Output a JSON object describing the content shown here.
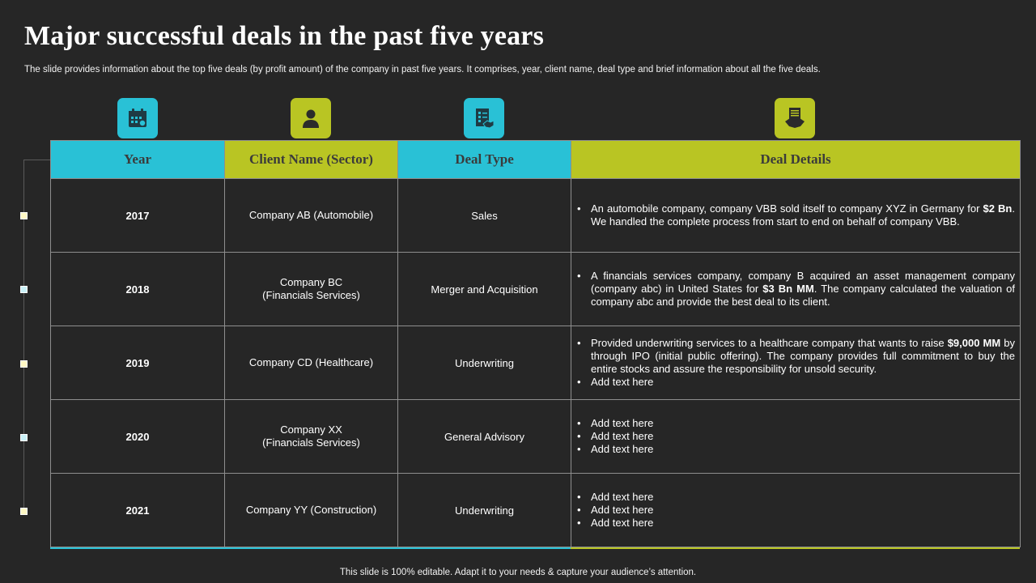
{
  "title": "Major successful deals in the past five years",
  "subtitle": "The slide provides information about the top five deals (by profit amount) of the company in past five years. It comprises, year, client name, deal type and brief information about all the five deals.",
  "colors": {
    "cyan": "#29c1d6",
    "lime": "#b9c523",
    "background": "#262626"
  },
  "icons": [
    "calendar-icon",
    "person-icon",
    "checklist-handshake-icon",
    "document-handshake-icon"
  ],
  "headers": {
    "year": "Year",
    "client": "Client Name (Sector)",
    "deal_type": "Deal Type",
    "details": "Deal Details"
  },
  "rows": [
    {
      "year": "2017",
      "client_lines": [
        "Company AB (Automobile)"
      ],
      "deal_type": "Sales",
      "details": [
        [
          {
            "t": "An automobile company, company VBB sold itself to company XYZ  in Germany for "
          },
          {
            "t": "$2 Bn",
            "b": true
          },
          {
            "t": ". We handled the complete process from start to end on behalf of company VBB."
          }
        ]
      ]
    },
    {
      "year": "2018",
      "client_lines": [
        "Company BC",
        "(Financials Services)"
      ],
      "deal_type": "Merger and Acquisition",
      "details": [
        [
          {
            "t": "A financials services company, company B acquired an asset management company (company abc) in United States for "
          },
          {
            "t": "$3 Bn MM",
            "b": true
          },
          {
            "t": ". The company calculated the valuation of company abc and provide  the best deal to its client."
          }
        ]
      ]
    },
    {
      "year": "2019",
      "client_lines": [
        "Company CD (Healthcare)"
      ],
      "deal_type": "Underwriting",
      "details": [
        [
          {
            "t": "Provided underwriting  services to a healthcare company that wants to raise "
          },
          {
            "t": "$9,000 MM",
            "b": true
          },
          {
            "t": " by through IPO (initial public offering).  The company provides full commitment to buy the entire stocks and assure the responsibility for unsold security."
          }
        ],
        [
          {
            "t": "Add text here"
          }
        ]
      ]
    },
    {
      "year": "2020",
      "client_lines": [
        "Company XX",
        "(Financials Services)"
      ],
      "deal_type": "General Advisory",
      "details": [
        [
          {
            "t": "Add text here"
          }
        ],
        [
          {
            "t": "Add text here"
          }
        ],
        [
          {
            "t": "Add text here"
          }
        ]
      ]
    },
    {
      "year": "2021",
      "client_lines": [
        "Company YY (Construction)"
      ],
      "deal_type": "Underwriting",
      "details": [
        [
          {
            "t": "Add text here"
          }
        ],
        [
          {
            "t": "Add text here"
          }
        ],
        [
          {
            "t": "Add text here"
          }
        ]
      ]
    }
  ],
  "footer": "This slide is 100% editable. Adapt it to your needs & capture your audience’s attention."
}
